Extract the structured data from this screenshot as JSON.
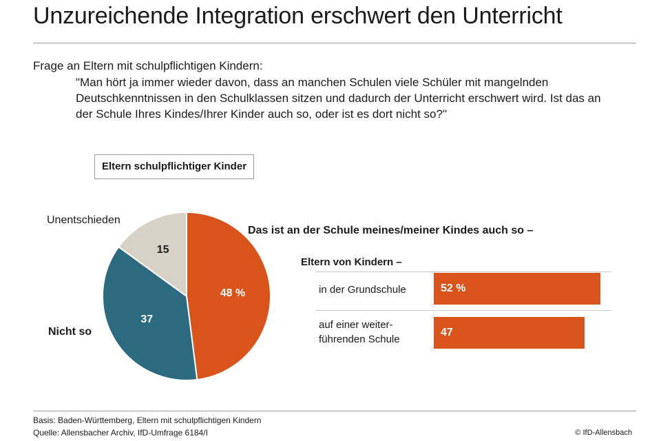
{
  "title": "Unzureichende Integration erschwert den Unterricht",
  "question_intro": "Frage an Eltern mit schulpflichtigen Kindern:",
  "question_text": "\"Man hört ja immer wieder davon, dass an manchen Schulen viele Schüler mit mangelnden Deutschkenntnissen in den Schulklassen sitzen und dadurch der Unterricht erschwert wird. Ist das an der Schule Ihres Kindes/Ihrer Kinder auch so, oder ist es dort nicht so?\"",
  "legend_box": "Eltern schulpflichtiger Kinder",
  "colors": {
    "orange": "#d9541a",
    "teal": "#2c6a80",
    "beige": "#d6d3c6"
  },
  "chart_data": [
    {
      "type": "pie",
      "slices": [
        {
          "label": "Das ist an der Schule meines/meiner Kindes auch so –",
          "value": 48,
          "value_label": "48 %",
          "color": "#d9541a"
        },
        {
          "label": "Nicht so",
          "value": 37,
          "value_label": "37",
          "color": "#2c6a80"
        },
        {
          "label": "Unentschieden",
          "value": 15,
          "value_label": "15",
          "color": "#d6d3c6"
        }
      ]
    },
    {
      "type": "bar",
      "title": "Das ist an der Schule meines/meiner Kindes auch so –",
      "subtitle": "Eltern von Kindern –",
      "categories": [
        "in der Grundschule",
        "auf einer weiter-führenden Schule"
      ],
      "values": [
        52,
        47
      ],
      "value_labels": [
        "52 %",
        "47"
      ],
      "color": "#d9541a"
    }
  ],
  "bar_labels": {
    "row1": "in der Grundschule",
    "row2_line1": "auf einer weiter-",
    "row2_line2": "führenden Schule"
  },
  "footer": {
    "basis": "Basis: Baden-Württemberg, Eltern mit schulpflichtigen Kindern",
    "source": "Quelle: Allensbacher Archiv, IfD-Umfrage 6184/I",
    "copyright": "© IfD-Allensbach"
  }
}
